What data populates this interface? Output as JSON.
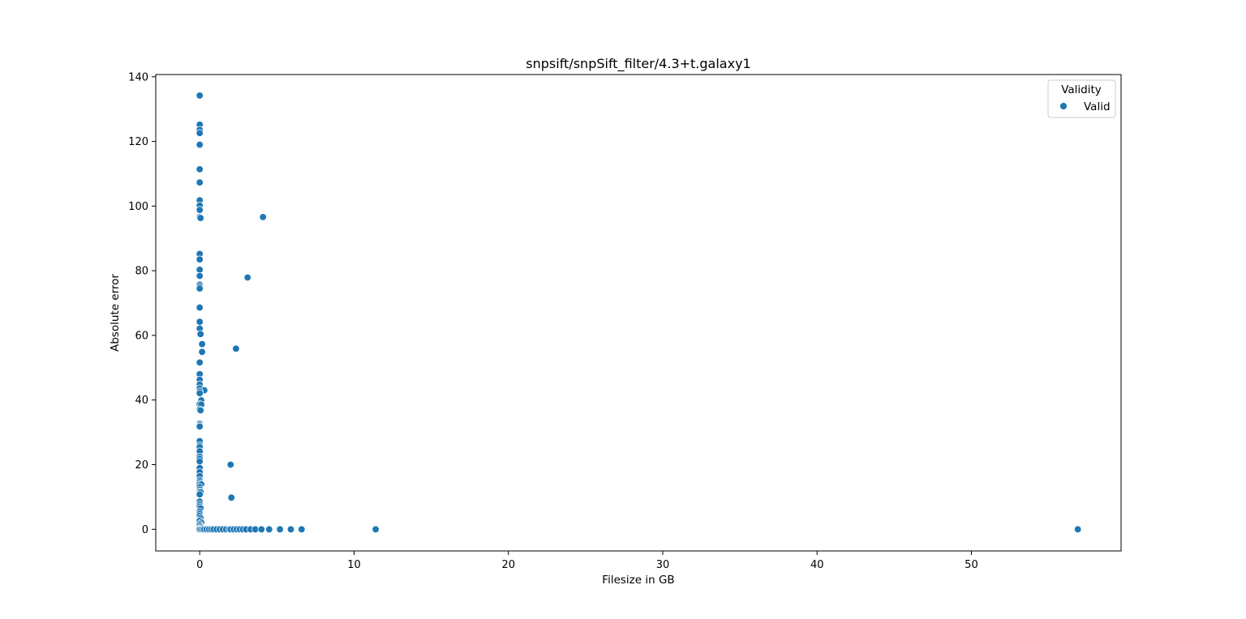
{
  "chart_data": {
    "type": "scatter",
    "title": "snpsift/snpSift_filter/4.3+t.galaxy1",
    "xlabel": "Filesize in GB",
    "ylabel": "Absolute error",
    "xlim": [
      -2.85,
      59.7
    ],
    "ylim": [
      -6.7,
      140.7
    ],
    "xticks": [
      0,
      10,
      20,
      30,
      40,
      50
    ],
    "yticks": [
      0,
      20,
      40,
      60,
      80,
      100,
      120,
      140
    ],
    "grid": false,
    "legend": {
      "title": "Validity",
      "placement": "top-right",
      "entries": [
        "Valid"
      ]
    },
    "series": [
      {
        "name": "Valid",
        "color": "#1f77b4",
        "points": [
          [
            0.0,
            134.2
          ],
          [
            0.0,
            125.2
          ],
          [
            0.0,
            123.6
          ],
          [
            0.0,
            122.6
          ],
          [
            0.0,
            119.0
          ],
          [
            0.0,
            111.4
          ],
          [
            0.0,
            107.3
          ],
          [
            0.0,
            101.8
          ],
          [
            0.0,
            100.2
          ],
          [
            0.0,
            98.8
          ],
          [
            0.0,
            96.6
          ],
          [
            0.05,
            96.3
          ],
          [
            0.0,
            85.2
          ],
          [
            0.0,
            83.5
          ],
          [
            0.0,
            80.3
          ],
          [
            0.0,
            78.4
          ],
          [
            0.0,
            75.7
          ],
          [
            0.0,
            75.1
          ],
          [
            0.0,
            74.5
          ],
          [
            0.0,
            68.6
          ],
          [
            0.0,
            64.2
          ],
          [
            0.0,
            62.1
          ],
          [
            0.05,
            60.4
          ],
          [
            0.15,
            57.3
          ],
          [
            0.15,
            54.9
          ],
          [
            0.0,
            51.6
          ],
          [
            0.0,
            48.0
          ],
          [
            0.0,
            46.3
          ],
          [
            0.0,
            44.8
          ],
          [
            0.0,
            43.6
          ],
          [
            0.3,
            43.0
          ],
          [
            0.0,
            42.7
          ],
          [
            0.0,
            42.1
          ],
          [
            0.1,
            39.9
          ],
          [
            0.0,
            38.7
          ],
          [
            0.1,
            38.6
          ],
          [
            0.0,
            37.1
          ],
          [
            0.05,
            36.8
          ],
          [
            0.0,
            32.6
          ],
          [
            0.0,
            32.1
          ],
          [
            0.0,
            31.8
          ],
          [
            0.0,
            27.3
          ],
          [
            0.0,
            26.0
          ],
          [
            0.0,
            25.4
          ],
          [
            0.0,
            24.1
          ],
          [
            0.0,
            22.5
          ],
          [
            0.0,
            21.8
          ],
          [
            0.0,
            21.0
          ],
          [
            0.0,
            19.0
          ],
          [
            0.0,
            17.7
          ],
          [
            0.0,
            16.5
          ],
          [
            0.0,
            15.2
          ],
          [
            0.0,
            14.6
          ],
          [
            0.0,
            14.0
          ],
          [
            0.1,
            13.9
          ],
          [
            0.0,
            13.1
          ],
          [
            0.0,
            12.3
          ],
          [
            0.0,
            11.7
          ],
          [
            0.05,
            11.5
          ],
          [
            0.0,
            10.8
          ],
          [
            0.0,
            8.6
          ],
          [
            0.0,
            7.7
          ],
          [
            0.0,
            7.0
          ],
          [
            0.05,
            6.5
          ],
          [
            0.0,
            5.5
          ],
          [
            0.0,
            4.8
          ],
          [
            0.0,
            4.1
          ],
          [
            0.05,
            3.4
          ],
          [
            0.0,
            2.7
          ],
          [
            0.1,
            2.1
          ],
          [
            0.0,
            1.6
          ],
          [
            0.0,
            1.1
          ],
          [
            0.05,
            0.6
          ],
          [
            0.0,
            0.2
          ],
          [
            0.0,
            0.0
          ],
          [
            0.1,
            0.0
          ],
          [
            0.2,
            0.0
          ],
          [
            0.3,
            0.0
          ],
          [
            0.45,
            0.0
          ],
          [
            0.6,
            0.0
          ],
          [
            0.75,
            0.0
          ],
          [
            0.9,
            0.0
          ],
          [
            1.1,
            0.0
          ],
          [
            1.3,
            0.0
          ],
          [
            1.5,
            0.0
          ],
          [
            1.7,
            0.0
          ],
          [
            1.9,
            0.0
          ],
          [
            2.0,
            0.0
          ],
          [
            2.2,
            0.0
          ],
          [
            2.4,
            0.0
          ],
          [
            2.6,
            0.0
          ],
          [
            2.8,
            0.0
          ],
          [
            3.0,
            0.0
          ],
          [
            3.3,
            0.0
          ],
          [
            3.6,
            0.0
          ],
          [
            4.0,
            0.0
          ],
          [
            4.5,
            0.0
          ],
          [
            5.2,
            0.0
          ],
          [
            5.9,
            0.0
          ],
          [
            6.6,
            0.0
          ],
          [
            11.4,
            0.0
          ],
          [
            56.9,
            0.0
          ],
          [
            2.0,
            20.0
          ],
          [
            2.05,
            9.8
          ],
          [
            2.35,
            55.9
          ],
          [
            3.1,
            77.9
          ],
          [
            4.1,
            96.6
          ]
        ]
      }
    ]
  }
}
